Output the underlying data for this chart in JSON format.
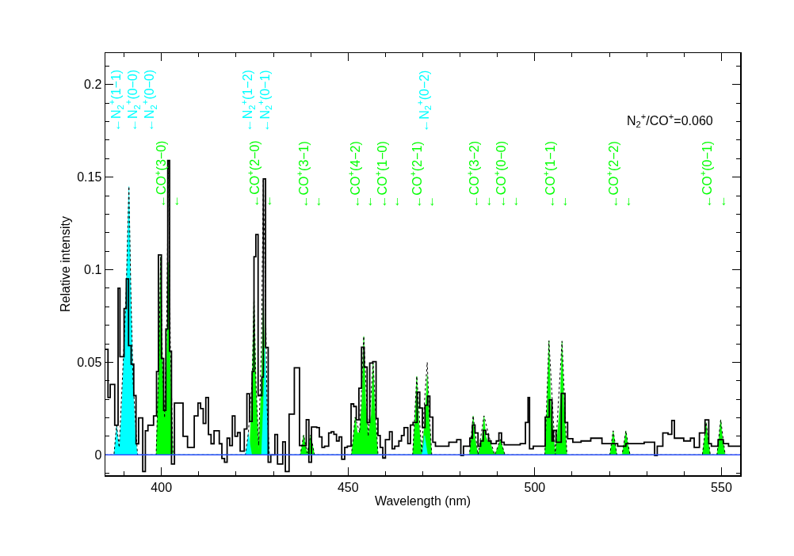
{
  "chart_data": {
    "type": "step",
    "xlabel": "Wavelength (nm)",
    "ylabel": "Relative intensity",
    "xlim": [
      385,
      555
    ],
    "ylim": [
      -0.011,
      0.217
    ],
    "xticks": [
      {
        "value": 390,
        "label": null
      },
      400,
      {
        "value": 410,
        "label": null
      },
      {
        "value": 420,
        "label": null
      },
      {
        "value": 430,
        "label": null
      },
      {
        "value": 440,
        "label": null
      },
      450,
      {
        "value": 460,
        "label": null
      },
      {
        "value": 470,
        "label": null
      },
      {
        "value": 480,
        "label": null
      },
      {
        "value": 490,
        "label": null
      },
      500,
      {
        "value": 510,
        "label": null
      },
      {
        "value": 520,
        "label": null
      },
      {
        "value": 530,
        "label": null
      },
      {
        "value": 540,
        "label": null
      },
      550
    ],
    "yticks": [
      {
        "value": -0.01,
        "label": null
      },
      0,
      {
        "value": 0.01,
        "label": null
      },
      {
        "value": 0.02,
        "label": null
      },
      {
        "value": 0.03,
        "label": null
      },
      {
        "value": 0.04,
        "label": null
      },
      0.05,
      {
        "value": 0.06,
        "label": null
      },
      {
        "value": 0.07,
        "label": null
      },
      {
        "value": 0.08,
        "label": null
      },
      {
        "value": 0.09,
        "label": null
      },
      0.1,
      {
        "value": 0.11,
        "label": null
      },
      {
        "value": 0.12,
        "label": null
      },
      {
        "value": 0.13,
        "label": null
      },
      {
        "value": 0.14,
        "label": null
      },
      0.15,
      {
        "value": 0.16,
        "label": null
      },
      {
        "value": 0.17,
        "label": null
      },
      {
        "value": 0.18,
        "label": null
      },
      {
        "value": 0.19,
        "label": null
      },
      0.2,
      {
        "value": 0.21,
        "label": null
      }
    ],
    "ref_lines": [
      {
        "axis": "y",
        "value": 0,
        "color": "#3050ff"
      }
    ],
    "series": [
      {
        "type": "area",
        "color": "#00ff00",
        "x": [
          398.6,
          399.3,
          399.8,
          400.3,
          400.85,
          401.4,
          401.9,
          402.4,
          403.1,
          423.6,
          424.3,
          424.8,
          425.3,
          426.05,
          426.8,
          427.3,
          427.8,
          428.5,
          437.2,
          437.7,
          438.1,
          438.6,
          439.05,
          439.5,
          440.0,
          440.5,
          441.0,
          450.9,
          451.4,
          451.9,
          452.5,
          453.1,
          453.7,
          454.2,
          454.7,
          455.4,
          456.2,
          456.7,
          457.2,
          458.0,
          467.3,
          467.9,
          468.4,
          468.9,
          469.7,
          470.6,
          471.2,
          471.7,
          472.4,
          482.5,
          483.0,
          483.5,
          484.0,
          484.8,
          485.9,
          486.4,
          486.9,
          487.5,
          488.0,
          488.6,
          489.3,
          490.1,
          490.8,
          491.4,
          492.0,
          502.7,
          503.3,
          503.8,
          504.3,
          505.5,
          506.8,
          507.3,
          507.8,
          508.6,
          520.1,
          520.6,
          521.0,
          521.5,
          522.0,
          523.4,
          523.9,
          524.4,
          524.9,
          525.5,
          544.9,
          545.4,
          545.9,
          546.4,
          547.0,
          548.8,
          549.3,
          549.8,
          550.3,
          551.0
        ],
        "values": [
          0,
          0.048,
          0.107,
          0.048,
          0.02,
          0.047,
          0.104,
          0.047,
          0,
          0,
          0.038,
          0.085,
          0.038,
          0.003,
          0.038,
          0.085,
          0.038,
          0,
          0,
          0.005,
          0.0107,
          0.005,
          0.001,
          0.005,
          0.0107,
          0.005,
          0,
          0,
          0.009,
          0.0203,
          0.012,
          0.012,
          0.029,
          0.064,
          0.029,
          0.01,
          0.022,
          0.0497,
          0.022,
          0,
          0,
          0.019,
          0.0425,
          0.019,
          0,
          0.019,
          0.0432,
          0.019,
          0,
          0,
          0.009,
          0.0211,
          0.009,
          0,
          0.009,
          0.0211,
          0.01,
          0.007,
          0.008,
          0.003,
          0,
          0.004,
          0.0083,
          0.004,
          0,
          0,
          0.027,
          0.0617,
          0.027,
          0,
          0.027,
          0.0614,
          0.027,
          0,
          0,
          0.006,
          0.013,
          0.006,
          0,
          0,
          0.006,
          0.013,
          0.006,
          0,
          0,
          0.008,
          0.0175,
          0.008,
          0,
          0,
          0.008,
          0.019,
          0.008,
          0
        ]
      },
      {
        "type": "area",
        "color": "#00ffff",
        "x": [
          387.3,
          387.7,
          388.0,
          388.4,
          388.7,
          389.3,
          390.0,
          390.6,
          391.3,
          391.8,
          392.4,
          393.0,
          393.6,
          422.5,
          423.0,
          423.3,
          423.7,
          424.2,
          426.8,
          427.3,
          427.8,
          428.3,
          428.9,
          469.8,
          470.2,
          470.5,
          470.9,
          471.3
        ],
        "values": [
          0,
          0.008,
          0.016,
          0.008,
          0.004,
          0.02,
          0.06,
          0.09,
          0.145,
          0.09,
          0.04,
          0.01,
          0,
          0,
          0.006,
          0.012,
          0.006,
          0,
          0,
          0.026,
          0.058,
          0.026,
          0,
          0,
          0.005,
          0.0104,
          0.005,
          0
        ]
      },
      {
        "type": "line",
        "color": "#000000",
        "line_style": "dotted",
        "x": [
          385,
          387.3,
          388.0,
          388.7,
          390.0,
          390.6,
          391.3,
          391.8,
          392.4,
          393.6,
          398.6,
          399.3,
          399.8,
          400.3,
          400.85,
          401.4,
          401.9,
          402.4,
          403.1,
          422.5,
          423.3,
          424.3,
          424.8,
          425.3,
          426.05,
          426.8,
          427.3,
          427.8,
          428.3,
          428.9,
          437.2,
          438.1,
          439.05,
          440.0,
          441.0,
          450.9,
          451.9,
          453.1,
          454.2,
          455.4,
          456.7,
          458.0,
          467.3,
          468.4,
          469.7,
          470.5,
          471.2,
          471.7,
          472.4,
          482.5,
          483.5,
          484.8,
          486.4,
          488.0,
          489.3,
          490.8,
          492.0,
          502.7,
          503.8,
          505.5,
          507.3,
          508.6,
          520.1,
          521.0,
          522.0,
          523.4,
          524.4,
          525.5,
          544.9,
          545.9,
          547.0,
          548.8,
          549.8,
          551.0,
          555
        ],
        "values": [
          0,
          0,
          0.016,
          0.004,
          0.06,
          0.09,
          0.145,
          0.09,
          0.04,
          0,
          0,
          0.048,
          0.107,
          0.048,
          0.02,
          0.07,
          0.159,
          0.06,
          0,
          0,
          0.012,
          0.04,
          0.085,
          0.04,
          0.005,
          0.06,
          0.149,
          0.095,
          0.026,
          0,
          0,
          0.0107,
          0.001,
          0.0107,
          0,
          0,
          0.0203,
          0.012,
          0.064,
          0.01,
          0.0497,
          0,
          0,
          0.0425,
          0.001,
          0.03,
          0.05,
          0.025,
          0,
          0,
          0.0211,
          0,
          0.0211,
          0.008,
          0,
          0.0083,
          0,
          0,
          0.0617,
          0,
          0.0614,
          0,
          0,
          0.013,
          0,
          0,
          0.013,
          0,
          0,
          0.0175,
          0,
          0,
          0.019,
          0,
          0
        ]
      },
      {
        "color": "#000000",
        "x": [
          385.0,
          385.7,
          386.3,
          386.9,
          387.5,
          388.4,
          388.9,
          390.0,
          390.6,
          391.2,
          391.9,
          392.6,
          393.2,
          393.9,
          395.0,
          395.7,
          396.4,
          397.2,
          397.9,
          398.7,
          399.2,
          400.0,
          400.6,
          401.2,
          401.7,
          402.2,
          402.7,
          403.5,
          404.9,
          405.8,
          406.6,
          407.0,
          408.8,
          409.8,
          410.5,
          411.2,
          411.9,
          412.6,
          413.3,
          414.1,
          415.5,
          416.2,
          416.9,
          417.6,
          418.3,
          419.0,
          419.7,
          420.4,
          421.1,
          422.2,
          422.9,
          423.6,
          424.3,
          424.8,
          425.3,
          425.9,
          426.9,
          427.3,
          427.9,
          428.6,
          429.3,
          430.4,
          431.1,
          432.5,
          433.2,
          434.2,
          435.6,
          436.6,
          437.0,
          438.8,
          439.5,
          440.2,
          441.6,
          442.3,
          443.0,
          443.7,
          444.8,
          445.5,
          446.2,
          446.9,
          447.6,
          448.3,
          449.1,
          449.8,
          450.8,
          451.5,
          452.2,
          452.9,
          453.6,
          454.3,
          455.1,
          455.8,
          456.6,
          457.5,
          458.0,
          458.6,
          459.3,
          460.0,
          461.1,
          461.8,
          462.5,
          463.6,
          464.3,
          465.0,
          466.0,
          466.7,
          467.4,
          468.5,
          469.2,
          469.9,
          470.6,
          471.3,
          471.9,
          472.7,
          473.4,
          477.0,
          479.1,
          480.2,
          480.9,
          482.6,
          483.3,
          484.0,
          484.8,
          485.5,
          486.2,
          486.9,
          487.6,
          488.3,
          489.7,
          490.4,
          491.1,
          491.8,
          496.1,
          497.5,
          498.2,
          498.6,
          499.6,
          501.0,
          502.8,
          503.9,
          504.6,
          505.0,
          505.7,
          507.1,
          508.1,
          508.8,
          510.2,
          512.4,
          515.0,
          518.0,
          522.2,
          524.4,
          529.3,
          532.1,
          532.8,
          534.3,
          535.7,
          536.7,
          537.4,
          539.9,
          541.7,
          542.7,
          544.1,
          545.6,
          546.6,
          547.3,
          549.1,
          550.5,
          551.9,
          555.0
        ],
        "values": [
          0.057,
          0.031,
          0.038,
          null,
          0.016,
          0.09,
          0.053,
          0.079,
          0.095,
          0.059,
          0.049,
          0.032,
          0.006,
          0.02,
          -0.009,
          0.013,
          0.016,
          null,
          0.021,
          0.045,
          0.108,
          0.052,
          0.024,
          0.068,
          0.159,
          0.056,
          -0.005,
          0.028,
          null,
          0.01,
          null,
          0.004,
          0.021,
          0.028,
          0.025,
          0.017,
          0.031,
          0.011,
          0.006,
          0.013,
          0.006,
          -0.002,
          -0.004,
          0.009,
          0.005,
          0.021,
          0.01,
          0.012,
          0.002,
          0.014,
          0.033,
          0.018,
          0.045,
          0.107,
          0.119,
          0.032,
          0.042,
          0.149,
          0.058,
          -0.004,
          0,
          0.011,
          -0.005,
          0.007,
          -0.009,
          0.022,
          0.047,
          null,
          0.005,
          0.019,
          -0.004,
          0.015,
          0.0147,
          0.0097,
          0.004,
          0.0047,
          0.0118,
          0.0125,
          0.0111,
          0.0075,
          0.0097,
          -0.0024,
          0.004,
          0.0047,
          0.0275,
          0.0261,
          0.0189,
          0.036,
          0.0581,
          0.0474,
          0.0175,
          0.0496,
          0.0503,
          0.0196,
          0.0104,
          0.004,
          -0.0017,
          0.0082,
          0.0125,
          0.0033,
          0.0047,
          0.0075,
          0.0104,
          0.0147,
          0.0061,
          0.0161,
          0.0175,
          0.0339,
          0.0253,
          0.0147,
          0.0268,
          0.0317,
          0.0204,
          0.0068,
          0.0047,
          0.0068,
          0.0082,
          -0.0003,
          0.0047,
          0.009,
          0.0161,
          0.0118,
          0.0047,
          0.0075,
          0.0132,
          0.0111,
          0.0075,
          0.0061,
          0.0075,
          0.0118,
          0.0068,
          0.0054,
          0.0061,
          0.0175,
          0.031,
          0.0033,
          0.0047,
          0.0047,
          0.0204,
          0.0297,
          0.0075,
          0.0132,
          0.0068,
          0.0332,
          0.0175,
          0.0087,
          0.0068,
          0.0075,
          0.009,
          0.0061,
          0.0047,
          0.0061,
          0.0068,
          -0.0003,
          0.0047,
          0.0118,
          0.0111,
          0.0186,
          0.009,
          0.0075,
          0.009,
          0.004,
          0.0118,
          0.0189,
          0.0061,
          0.0047,
          0.0082,
          0.0061,
          0.0047,
          0.0047
        ]
      }
    ],
    "annotations": [
      "N$_{2}$$^{+}$/CO$^{+}$=0.060",
      "←N$_{2}$$^{+}$(1−1)",
      "←N$_{2}$$^{+}$(0−0)",
      "←N$_{2}$$^{+}$(0−0)",
      "←N$_{2}$$^{+}$(1−2)",
      "←N$_{2}$$^{+}$(0−1)",
      "←N$_{2}$$^{+}$(0−2)",
      "←CO$^{+}$(3−0)",
      "←",
      "←CO$^{+}$(2−0)",
      "←",
      "←CO$^{+}$(3−1)",
      "←",
      "←CO$^{+}$(4−2)",
      "←",
      "←CO$^{+}$(1−0)",
      "←",
      "←CO$^{+}$(2−1)",
      "←",
      "←CO$^{+}$(3−2)",
      "←",
      "←CO$^{+}$(0−0)",
      "←",
      "←CO$^{+}$(1−1)",
      "←",
      "←CO$^{+}$(2−2)",
      "←",
      "←CO$^{+}$(0−1)",
      "←"
    ]
  }
}
